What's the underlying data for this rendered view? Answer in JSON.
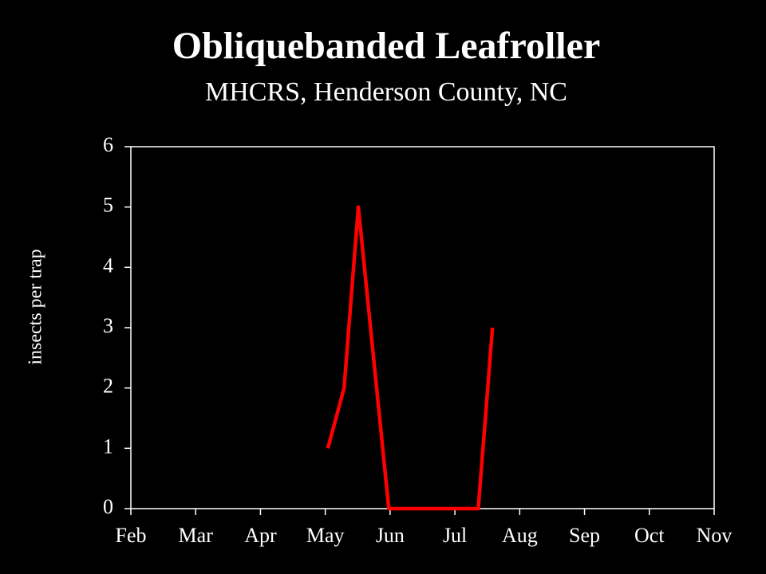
{
  "chart_data": {
    "type": "line",
    "title": "Obliquebanded Leafroller",
    "subtitle": "MHCRS, Henderson County, NC",
    "y_label": "insects per trap",
    "x": [
      5.04,
      5.29,
      5.51,
      5.98,
      7.36,
      7.58
    ],
    "series": [
      {
        "name": "insects per trap",
        "color": "#ff0000",
        "values": [
          1,
          2,
          5,
          0,
          0,
          3
        ]
      }
    ],
    "xlim": [
      2,
      11
    ],
    "xticks": [
      {
        "value": 2,
        "label": "Feb"
      },
      {
        "value": 3,
        "label": "Mar"
      },
      {
        "value": 4,
        "label": "Apr"
      },
      {
        "value": 5,
        "label": "May"
      },
      {
        "value": 6,
        "label": "Jun"
      },
      {
        "value": 7,
        "label": "Jul"
      },
      {
        "value": 8,
        "label": "Aug"
      },
      {
        "value": 9,
        "label": "Sep"
      },
      {
        "value": 10,
        "label": "Oct"
      },
      {
        "value": 11,
        "label": "Nov"
      }
    ],
    "ylim": [
      0,
      6
    ],
    "yticks": [
      0,
      1,
      2,
      3,
      4,
      5,
      6
    ],
    "grid": false
  }
}
